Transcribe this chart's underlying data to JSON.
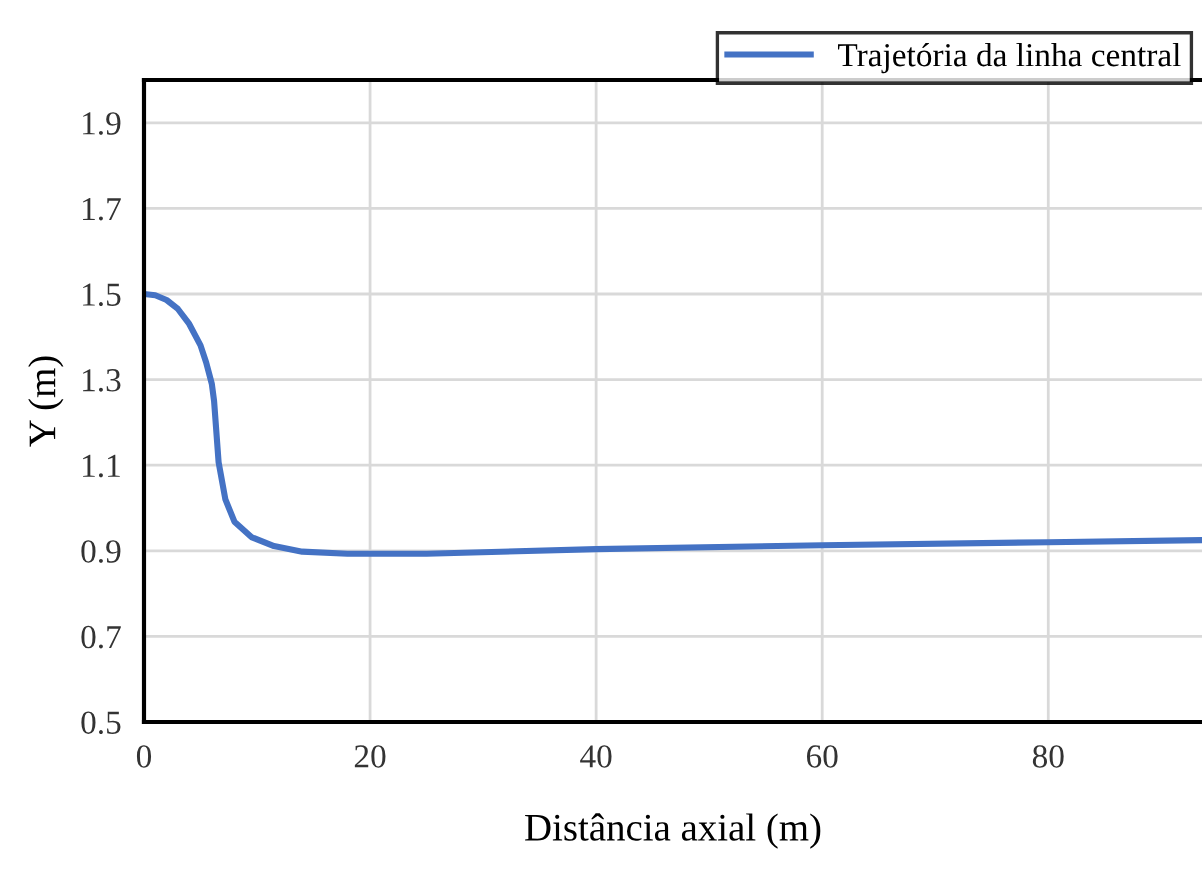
{
  "chart_data": {
    "type": "line",
    "xlabel": "Distância axial (m)",
    "ylabel": "Y (m)",
    "x": [
      0,
      1,
      2,
      3,
      4,
      5,
      5.5,
      6,
      6.2,
      6.6,
      7.2,
      8,
      9.5,
      11.5,
      14,
      18,
      25,
      40,
      60,
      80,
      93.6
    ],
    "series": [
      {
        "name": "Trajetória da linha central",
        "color": "#4472c4",
        "values": [
          1.5,
          1.497,
          1.486,
          1.465,
          1.43,
          1.38,
          1.34,
          1.29,
          1.25,
          1.107,
          1.02,
          0.968,
          0.932,
          0.911,
          0.898,
          0.893,
          0.893,
          0.904,
          0.913,
          0.92,
          0.925
        ]
      }
    ],
    "xlim": [
      0,
      93.6
    ],
    "ylim": [
      0.5,
      2.0
    ],
    "xticks": [
      0,
      20,
      40,
      60,
      80
    ],
    "yticks": [
      0.5,
      0.7,
      0.9,
      1.1,
      1.3,
      1.5,
      1.7,
      1.9
    ],
    "grid": true,
    "legend": "top right",
    "marker": "none",
    "line_style": "solid"
  }
}
